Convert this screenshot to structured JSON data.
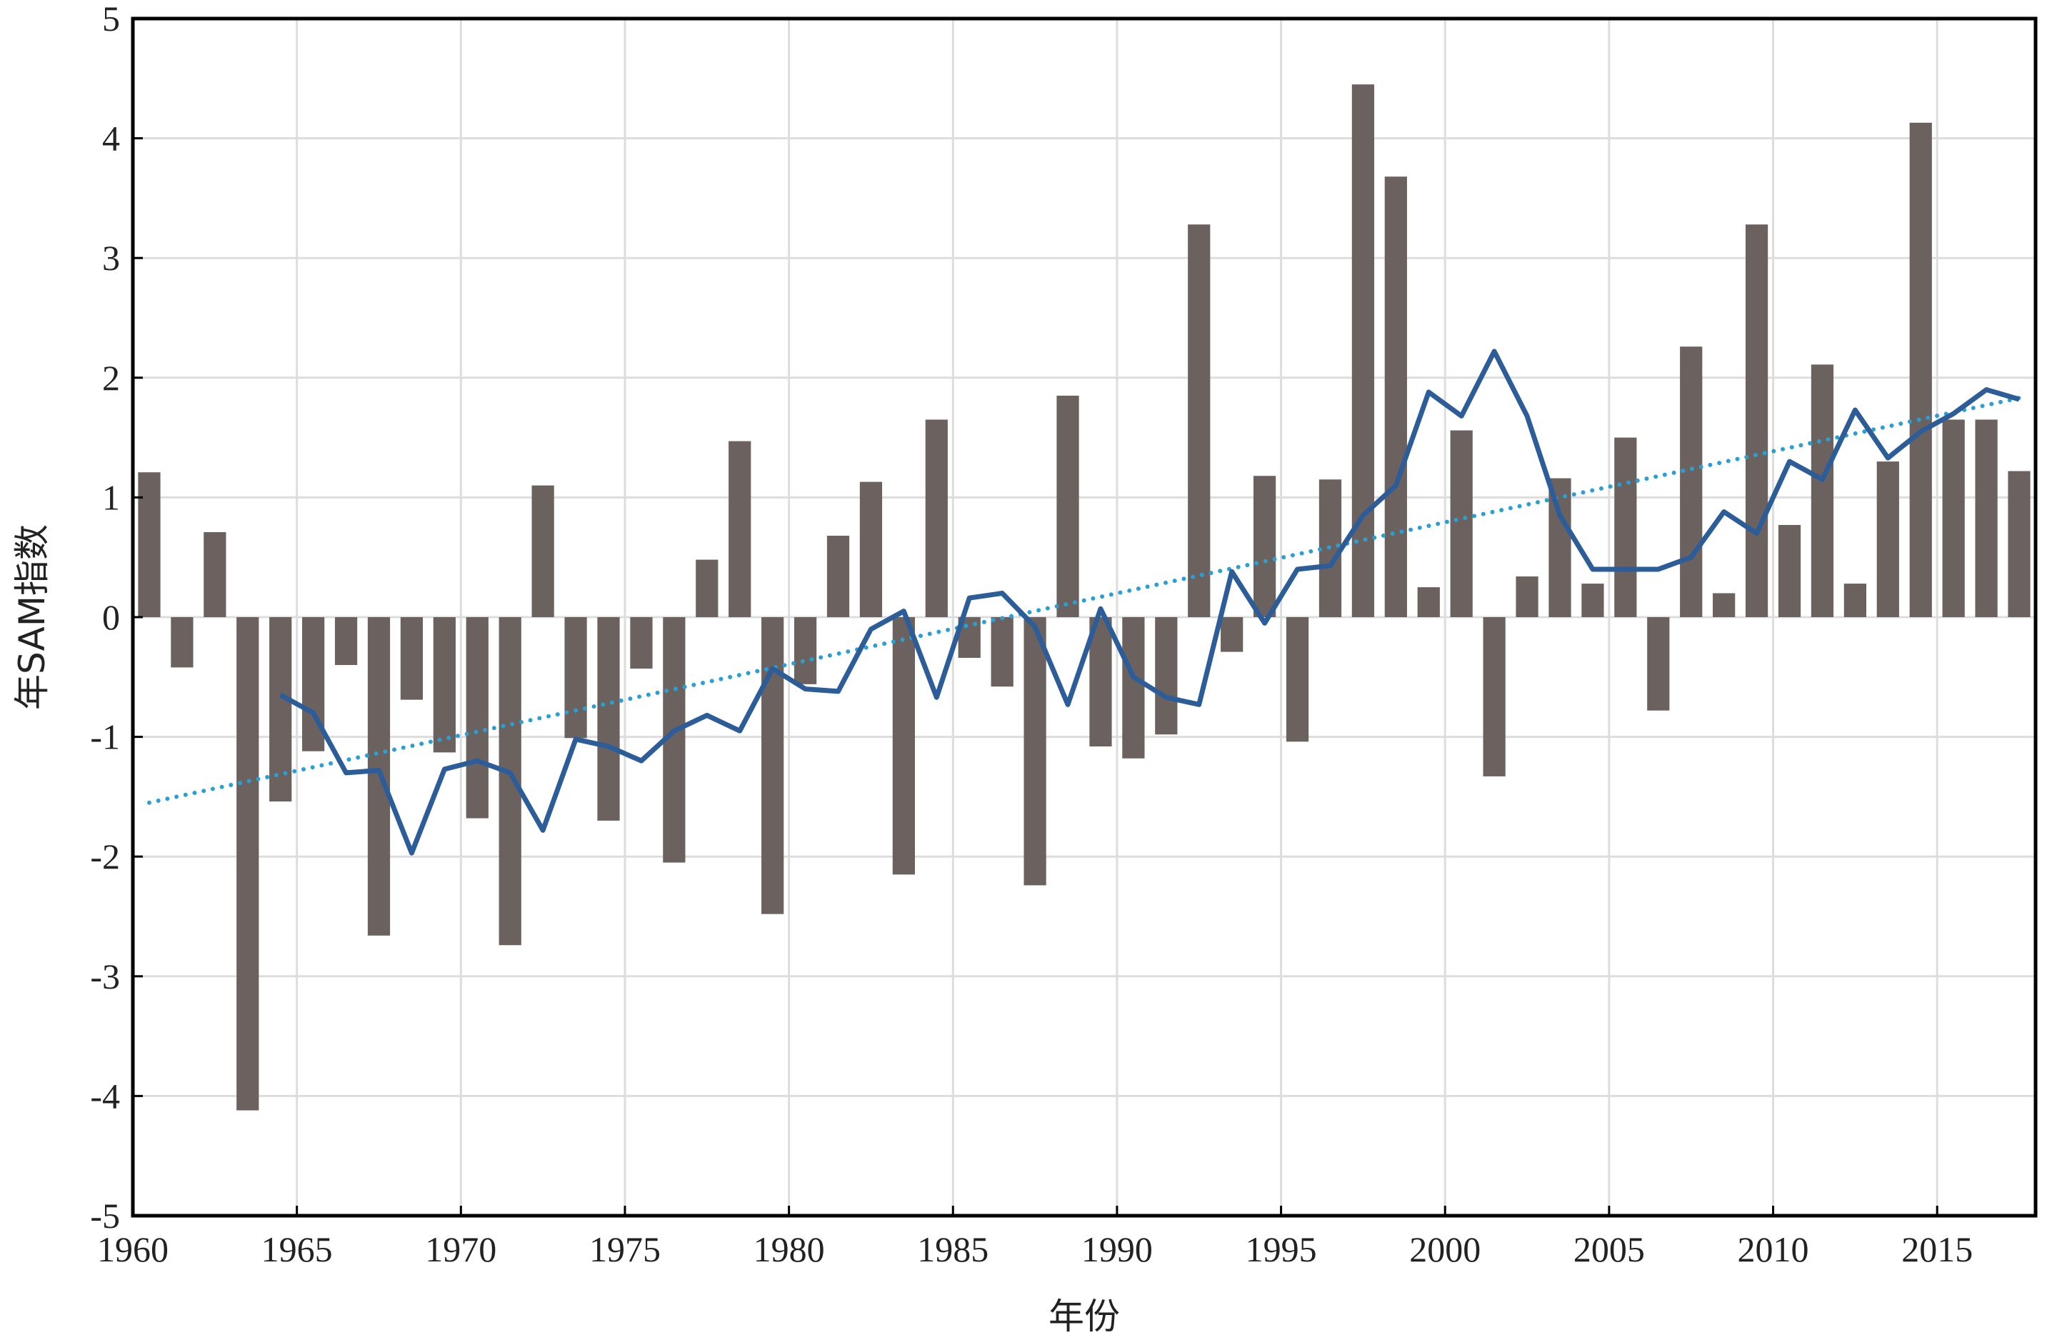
{
  "chart_data": {
    "type": "bar",
    "xlabel": "年份",
    "ylabel": "年SAM指数",
    "xlim": [
      1960,
      2018
    ],
    "ylim": [
      -5,
      5
    ],
    "xticks": [
      1960,
      1965,
      1970,
      1975,
      1980,
      1985,
      1990,
      1995,
      2000,
      2005,
      2010,
      2015
    ],
    "yticks": [
      -5,
      -4,
      -3,
      -2,
      -1,
      0,
      1,
      2,
      3,
      4,
      5
    ],
    "grid": true,
    "legend": "none",
    "colors": {
      "bars": "#6b625f",
      "moving_average": "#2c5d99",
      "trend": "#2b9fd3",
      "grid": "#dddddd",
      "frame": "#000000"
    },
    "series": [
      {
        "type": "bar",
        "x": [
          1961,
          1962,
          1963,
          1964,
          1965,
          1966,
          1967,
          1968,
          1969,
          1970,
          1971,
          1972,
          1973,
          1974,
          1975,
          1976,
          1977,
          1978,
          1979,
          1980,
          1981,
          1982,
          1983,
          1984,
          1985,
          1986,
          1987,
          1988,
          1989,
          1990,
          1991,
          1992,
          1993,
          1994,
          1995,
          1996,
          1997,
          1998,
          1999,
          2000,
          2001,
          2002,
          2003,
          2004,
          2005,
          2006,
          2007,
          2008,
          2009,
          2010,
          2011,
          2012,
          2013,
          2014,
          2015,
          2016,
          2017,
          2018
        ],
        "values": [
          1.21,
          -0.42,
          0.71,
          -4.12,
          -1.54,
          -1.12,
          -0.4,
          -2.66,
          -0.69,
          -1.13,
          -1.68,
          -2.74,
          1.1,
          -1.01,
          -1.7,
          -0.43,
          -2.05,
          0.48,
          1.47,
          -2.48,
          -0.56,
          0.68,
          1.13,
          -2.15,
          1.65,
          -0.34,
          -0.58,
          -2.24,
          1.85,
          -1.08,
          -1.18,
          -0.98,
          3.28,
          -0.29,
          1.18,
          -1.04,
          1.15,
          4.45,
          3.68,
          0.25,
          1.56,
          -1.33,
          0.34,
          1.16,
          0.28,
          1.5,
          -0.78,
          2.26,
          0.2,
          3.28,
          0.77,
          2.11,
          0.28,
          1.3,
          4.13,
          1.65,
          1.65,
          1.22
        ]
      },
      {
        "type": "line",
        "x": [
          1964.5,
          1965.5,
          1966.5,
          1967.5,
          1968.5,
          1969.5,
          1970.5,
          1971.5,
          1972.5,
          1973.5,
          1974.5,
          1975.5,
          1976.5,
          1977.5,
          1978.5,
          1979.5,
          1980.5,
          1981.5,
          1982.5,
          1983.5,
          1984.5,
          1985.5,
          1986.5,
          1987.5,
          1988.5,
          1989.5,
          1990.5,
          1991.5,
          1992.5,
          1993.5,
          1994.5,
          1995.5,
          1996.5,
          1997.5,
          1998.5,
          1999.5,
          2000.5,
          2001.5,
          2002.5,
          2003.5,
          2004.5,
          2005.5,
          2006.5,
          2007.5,
          2008.5,
          2009.5,
          2010.5,
          2011.5,
          2012.5,
          2013.5,
          2014.5,
          2015.5,
          2016.5,
          2017.5
        ],
        "values": [
          -0.65,
          -0.8,
          -1.3,
          -1.28,
          -1.97,
          -1.27,
          -1.2,
          -1.3,
          -1.78,
          -1.02,
          -1.08,
          -1.2,
          -0.95,
          -0.82,
          -0.95,
          -0.43,
          -0.6,
          -0.62,
          -0.1,
          0.05,
          -0.67,
          0.16,
          0.2,
          -0.08,
          -0.73,
          0.07,
          -0.5,
          -0.67,
          -0.73,
          0.38,
          -0.05,
          0.4,
          0.43,
          0.85,
          1.1,
          1.88,
          1.68,
          2.22,
          1.68,
          0.85,
          0.4,
          0.4,
          0.4,
          0.5,
          0.88,
          0.7,
          1.3,
          1.15,
          1.73,
          1.33,
          1.55,
          1.7,
          1.9,
          1.82
        ]
      },
      {
        "type": "trend",
        "x": [
          1960.5,
          2017.5
        ],
        "values": [
          -1.55,
          1.83
        ]
      }
    ]
  }
}
